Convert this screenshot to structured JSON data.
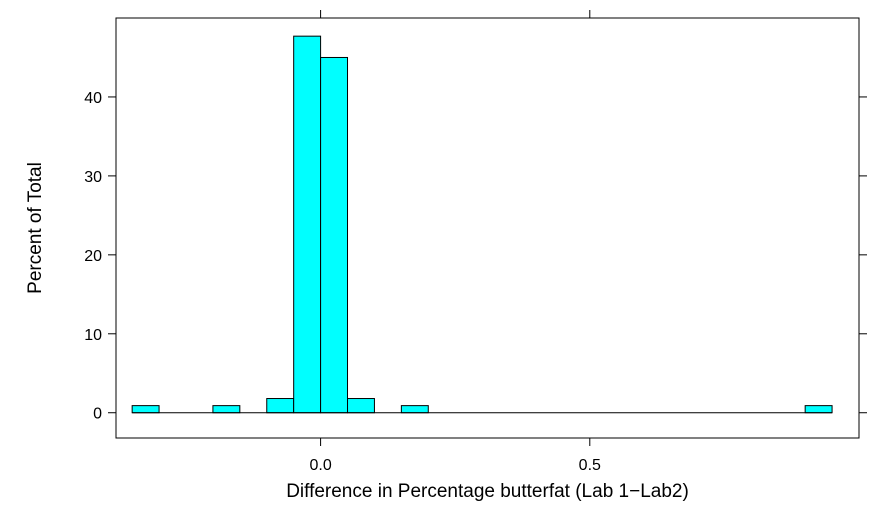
{
  "chart_data": {
    "type": "bar",
    "title": "",
    "xlabel": "Difference in Percentage butterfat (Lab 1−Lab2)",
    "ylabel": "Percent of Total",
    "xlim": [
      -0.38,
      1.0
    ],
    "ylim": [
      -3.2,
      50
    ],
    "xticks": [
      {
        "value": 0.0,
        "label": "0.0"
      },
      {
        "value": 0.5,
        "label": "0.5"
      }
    ],
    "yticks": [
      {
        "value": 0,
        "label": "0"
      },
      {
        "value": 10,
        "label": "10"
      },
      {
        "value": 20,
        "label": "20"
      },
      {
        "value": 30,
        "label": "30"
      },
      {
        "value": 40,
        "label": "40"
      }
    ],
    "bin_width": 0.05,
    "bins": [
      {
        "start": -0.35,
        "end": -0.3,
        "percent": 0.9
      },
      {
        "start": -0.3,
        "end": -0.25,
        "percent": 0
      },
      {
        "start": -0.25,
        "end": -0.2,
        "percent": 0
      },
      {
        "start": -0.2,
        "end": -0.15,
        "percent": 0.9
      },
      {
        "start": -0.15,
        "end": -0.1,
        "percent": 0
      },
      {
        "start": -0.1,
        "end": -0.05,
        "percent": 1.8
      },
      {
        "start": -0.05,
        "end": 0.0,
        "percent": 47.7
      },
      {
        "start": 0.0,
        "end": 0.05,
        "percent": 45.0
      },
      {
        "start": 0.05,
        "end": 0.1,
        "percent": 1.8
      },
      {
        "start": 0.1,
        "end": 0.15,
        "percent": 0
      },
      {
        "start": 0.15,
        "end": 0.2,
        "percent": 0.9
      },
      {
        "start": 0.9,
        "end": 0.95,
        "percent": 0.9
      }
    ],
    "baseline_range": [
      -0.35,
      0.95
    ],
    "grid": false,
    "legend": "none",
    "colors": {
      "bar_fill": "#00ffff",
      "bar_stroke": "#000000"
    }
  }
}
